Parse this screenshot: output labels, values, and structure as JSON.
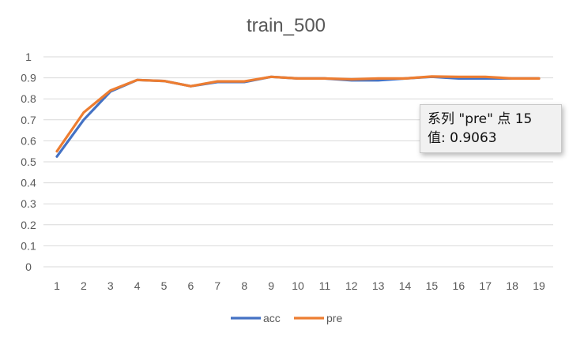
{
  "colors": {
    "acc": "#4472c4",
    "pre": "#ed7d31",
    "grid": "#d9d9d9",
    "text": "#595959"
  },
  "tooltip": {
    "line1": "系列 \"pre\" 点 15",
    "line2": "值: 0.9063"
  },
  "chart_data": {
    "type": "line",
    "title": "train_500",
    "xlabel": "",
    "ylabel": "",
    "categories": [
      "1",
      "2",
      "3",
      "4",
      "5",
      "6",
      "7",
      "8",
      "9",
      "10",
      "11",
      "12",
      "13",
      "14",
      "15",
      "16",
      "17",
      "18",
      "19"
    ],
    "ylim": [
      0,
      1
    ],
    "yticks": [
      "0",
      "0.1",
      "0.2",
      "0.3",
      "0.4",
      "0.5",
      "0.6",
      "0.7",
      "0.8",
      "0.9",
      "1"
    ],
    "grid": true,
    "legend": "bottom",
    "series": [
      {
        "name": "acc",
        "color": "#4472c4",
        "values": [
          0.525,
          0.7,
          0.835,
          0.89,
          0.885,
          0.86,
          0.88,
          0.88,
          0.905,
          0.897,
          0.897,
          0.888,
          0.888,
          0.897,
          0.905,
          0.897,
          0.897,
          0.897,
          0.897
        ]
      },
      {
        "name": "pre",
        "color": "#ed7d31",
        "values": [
          0.55,
          0.735,
          0.84,
          0.89,
          0.885,
          0.86,
          0.883,
          0.883,
          0.905,
          0.897,
          0.897,
          0.893,
          0.897,
          0.897,
          0.9063,
          0.905,
          0.905,
          0.897,
          0.897
        ]
      }
    ]
  }
}
